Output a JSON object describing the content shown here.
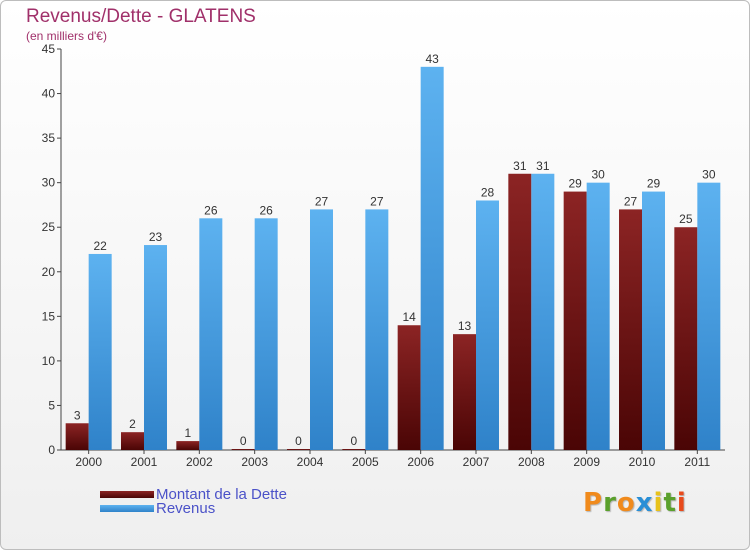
{
  "title": "Revenus/Dette - GLATENS",
  "subtitle": "(en milliers d'€)",
  "legend": [
    {
      "label": "Montant de la Dette",
      "color": "#6e0e0e"
    },
    {
      "label": "Revenus",
      "color": "#4aa0e6"
    }
  ],
  "logo": {
    "text": "Proxiti",
    "colors": [
      "#f08a1c",
      "#5aa02c",
      "#f08a1c",
      "#2a8fd6",
      "#e8c21a",
      "#5aa02c",
      "#e84a1c"
    ]
  },
  "chart_data": {
    "type": "bar",
    "categories": [
      "2000",
      "2001",
      "2002",
      "2003",
      "2004",
      "2005",
      "2006",
      "2007",
      "2008",
      "2009",
      "2010",
      "2011"
    ],
    "series": [
      {
        "name": "Montant de la Dette",
        "color": "#7a1414",
        "values": [
          3,
          2,
          1,
          0,
          0,
          0,
          14,
          13,
          31,
          29,
          27,
          25
        ]
      },
      {
        "name": "Revenus",
        "color": "#4aa0e6",
        "values": [
          22,
          23,
          26,
          26,
          27,
          27,
          43,
          28,
          31,
          30,
          29,
          30
        ]
      }
    ],
    "ylim": [
      0,
      45
    ],
    "yticks": [
      0,
      5,
      10,
      15,
      20,
      25,
      30,
      35,
      40,
      45
    ],
    "grid": false,
    "legend_position": "bottom-left"
  }
}
